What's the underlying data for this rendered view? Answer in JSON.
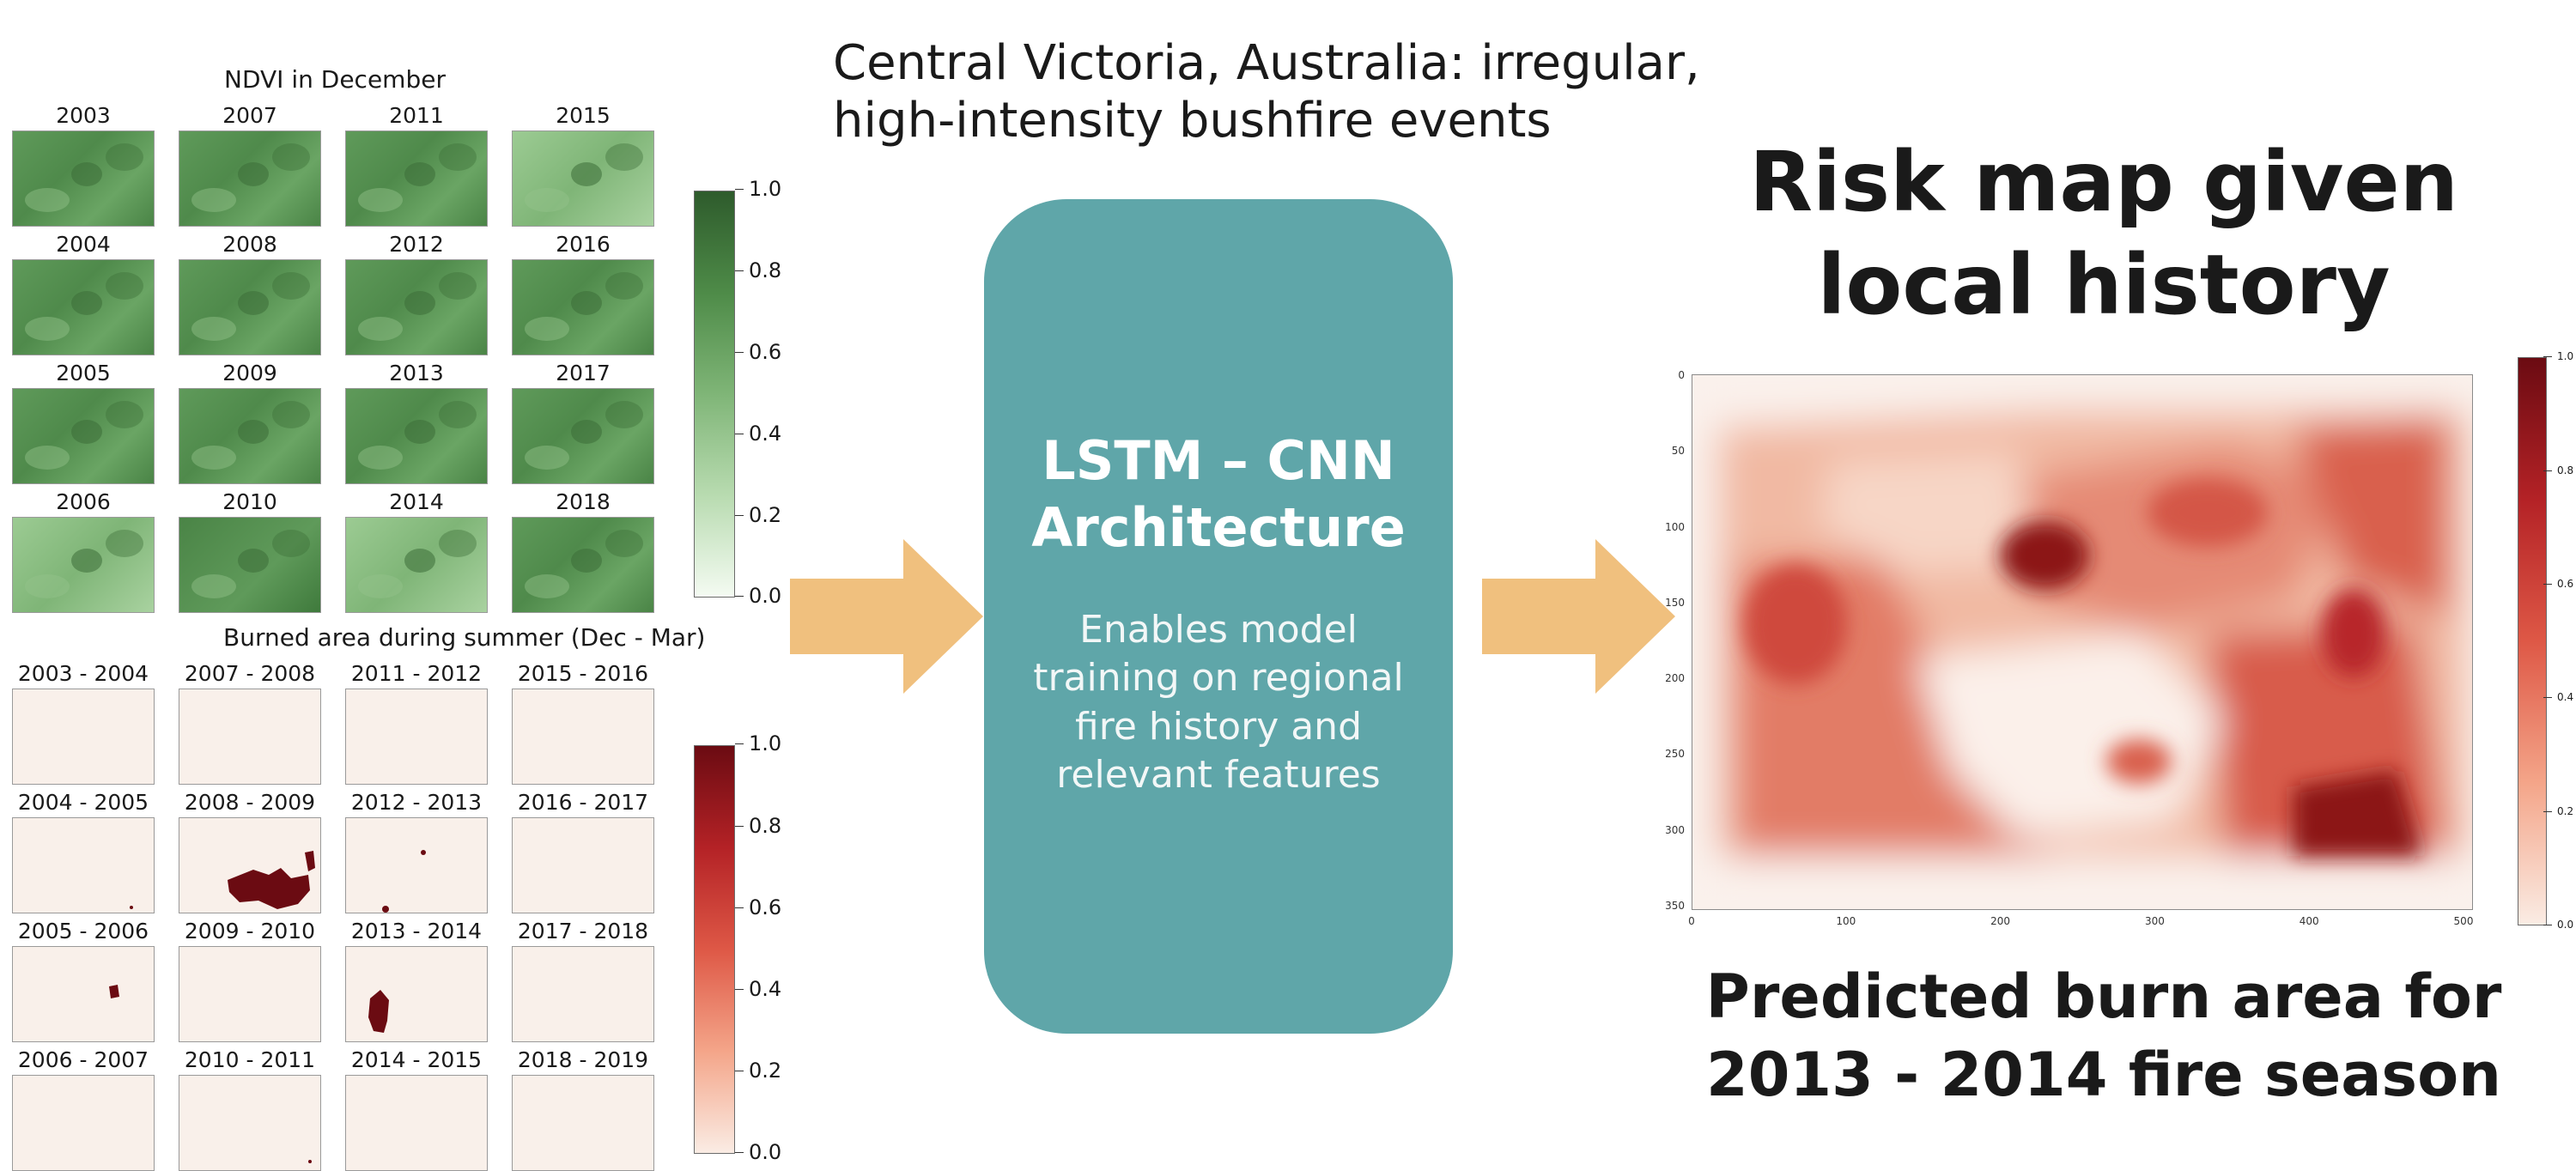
{
  "headline": {
    "line1": "Central Victoria, Australia: irregular,",
    "line2": "high-intensity bushfire events"
  },
  "ndvi_panel": {
    "title": "NDVI in December",
    "years": [
      "2003",
      "2007",
      "2011",
      "2015",
      "2004",
      "2008",
      "2012",
      "2016",
      "2005",
      "2009",
      "2013",
      "2017",
      "2006",
      "2010",
      "2014",
      "2018"
    ],
    "colorbar_ticks": [
      "1.0",
      "0.8",
      "0.6",
      "0.4",
      "0.2",
      "0.0"
    ],
    "colorbar_gradient": [
      "#2e5b2c",
      "#4e8b48",
      "#7fb577",
      "#b8dbb0",
      "#f4fbf2"
    ]
  },
  "burn_panel": {
    "title": "Burned area during summer (Dec - Mar)",
    "seasons": [
      "2003 - 2004",
      "2007 - 2008",
      "2011 - 2012",
      "2015 - 2016",
      "2004 - 2005",
      "2008 - 2009",
      "2012 - 2013",
      "2016 - 2017",
      "2005 - 2006",
      "2009 - 2010",
      "2013 - 2014",
      "2017 - 2018",
      "2006 - 2007",
      "2010 - 2011",
      "2014 - 2015",
      "2018 - 2019"
    ],
    "colorbar_ticks": [
      "1.0",
      "0.8",
      "0.6",
      "0.4",
      "0.2",
      "0.0"
    ],
    "colorbar_gradient": [
      "#6b0b12",
      "#b42226",
      "#de5846",
      "#f4a589",
      "#faece4"
    ],
    "burn_color": "#6b0b12"
  },
  "architecture_box": {
    "title_line1": "LSTM – CNN",
    "title_line2": "Architecture",
    "body_line1": "Enables model",
    "body_line2": "training on regional",
    "body_line3": "fire history and",
    "body_line4": "relevant features",
    "fill_color": "#5fa6a9"
  },
  "arrows": {
    "color": "#f0c07e"
  },
  "risk_map": {
    "title_line1": "Risk map given",
    "title_line2": "local history",
    "caption_line1": "Predicted burn area for",
    "caption_line2": "2013 - 2014 fire season",
    "y_ticks": [
      "0",
      "50",
      "100",
      "150",
      "200",
      "250",
      "300",
      "350"
    ],
    "x_ticks": [
      "0",
      "100",
      "200",
      "300",
      "400",
      "500"
    ],
    "colorbar_ticks": [
      "1.0",
      "0.8",
      "0.6",
      "0.4",
      "0.2",
      "0.0"
    ],
    "colorbar_gradient": [
      "#6b0b12",
      "#b42226",
      "#de5846",
      "#f4a589",
      "#faece4"
    ]
  }
}
